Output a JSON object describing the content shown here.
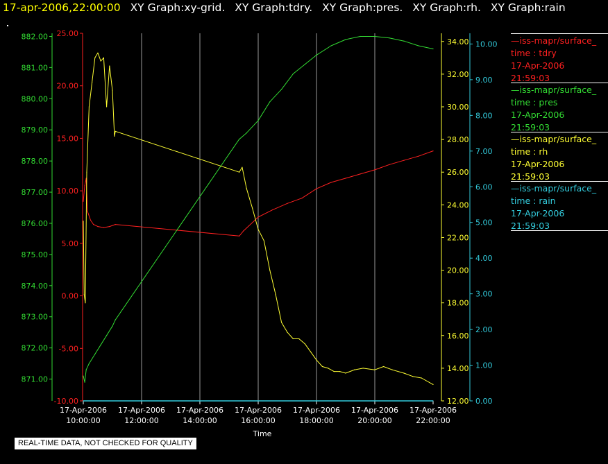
{
  "header": {
    "timestamp": "17-apr-2006,22:00:00",
    "graphs": [
      "XY Graph:xy-grid.",
      "XY Graph:tdry.",
      "XY Graph:pres.",
      "XY Graph:rh.",
      "XY Graph:rain"
    ]
  },
  "footer": {
    "quality_note": "REAL-TIME DATA, NOT CHECKED FOR QUALITY"
  },
  "legend": [
    {
      "name": "iss-mapr/surface_",
      "field": "time : tdry",
      "date": "17-Apr-2006",
      "time": "21:59:03",
      "color": "#ff2020"
    },
    {
      "name": "iss-mapr/surface_",
      "field": "time : pres",
      "date": "17-Apr-2006",
      "time": "21:59:03",
      "color": "#33dd33"
    },
    {
      "name": "iss-mapr/surface_",
      "field": "time : rh",
      "date": "17-Apr-2006",
      "time": "21:59:03",
      "color": "#ffff33"
    },
    {
      "name": "iss-mapr/surface_",
      "field": "time : rain",
      "date": "17-Apr-2006",
      "time": "21:59:03",
      "color": "#33ccdd"
    }
  ],
  "chart_data": {
    "type": "line",
    "xlabel": "Time",
    "x_ticks": [
      "17-Apr-2006 10:00:00",
      "17-Apr-2006 12:00:00",
      "17-Apr-2006 14:00:00",
      "17-Apr-2006 16:00:00",
      "17-Apr-2006 18:00:00",
      "17-Apr-2006 20:00:00",
      "17-Apr-2006 22:00:00"
    ],
    "x_range_hours": [
      10,
      22
    ],
    "grid": "vertical lines at each x tick",
    "axes": {
      "pres": {
        "ylim": [
          870.3,
          882.1
        ],
        "ticks": [
          "871.00",
          "872.00",
          "873.00",
          "874.00",
          "875.00",
          "876.00",
          "877.00",
          "878.00",
          "879.00",
          "880.00",
          "881.00",
          "882.00"
        ],
        "color": "#33dd33"
      },
      "tdry": {
        "ylim": [
          -10,
          25
        ],
        "ticks": [
          "-10.00",
          "-5.00",
          "0.00",
          "5.00",
          "10.00",
          "15.00",
          "20.00",
          "25.00"
        ],
        "color": "#ff2020"
      },
      "rh": {
        "ylim": [
          12,
          34.5
        ],
        "ticks": [
          "12.00",
          "14.00",
          "16.00",
          "18.00",
          "20.00",
          "22.00",
          "24.00",
          "26.00",
          "28.00",
          "30.00",
          "32.00",
          "34.00"
        ],
        "color": "#ffff33"
      },
      "rain": {
        "ylim": [
          0,
          10.3
        ],
        "ticks": [
          "0.00",
          "1.00",
          "2.00",
          "3.00",
          "4.00",
          "5.00",
          "6.00",
          "7.00",
          "8.00",
          "9.00",
          "10.00"
        ],
        "color": "#33ccdd"
      }
    },
    "series": [
      {
        "name": "time : tdry",
        "axis": "tdry",
        "color": "#ff2020",
        "x": [
          10.0,
          10.05,
          10.1,
          10.15,
          10.25,
          10.35,
          10.5,
          10.7,
          10.9,
          11.1,
          15.35,
          15.5,
          16.0,
          16.5,
          17.0,
          17.5,
          18.0,
          18.5,
          19.0,
          19.5,
          20.0,
          20.5,
          21.0,
          21.5,
          22.0
        ],
        "y": [
          9.0,
          10.5,
          11.2,
          8.0,
          7.2,
          6.8,
          6.6,
          6.5,
          6.6,
          6.8,
          5.7,
          6.2,
          7.5,
          8.2,
          8.8,
          9.3,
          10.2,
          10.8,
          11.2,
          11.6,
          12.0,
          12.5,
          12.9,
          13.3,
          13.8
        ]
      },
      {
        "name": "time : pres",
        "axis": "pres",
        "color": "#33dd33",
        "x": [
          10.0,
          10.05,
          10.1,
          10.2,
          10.4,
          10.6,
          10.8,
          11.0,
          11.1,
          15.35,
          15.6,
          16.0,
          16.4,
          16.8,
          17.2,
          17.6,
          18.0,
          18.5,
          19.0,
          19.5,
          20.0,
          20.5,
          21.0,
          21.5,
          22.0
        ],
        "y": [
          871.1,
          870.9,
          871.3,
          871.5,
          871.8,
          872.1,
          872.4,
          872.7,
          872.9,
          878.7,
          878.9,
          879.3,
          879.9,
          880.3,
          880.8,
          881.1,
          881.4,
          881.7,
          881.9,
          882.0,
          882.0,
          881.95,
          881.85,
          881.7,
          881.6
        ]
      },
      {
        "name": "time : rh",
        "axis": "rh",
        "color": "#ffff33",
        "x": [
          10.0,
          10.03,
          10.07,
          10.12,
          10.2,
          10.3,
          10.4,
          10.5,
          10.6,
          10.7,
          10.8,
          10.9,
          11.0,
          11.07,
          11.1,
          15.35,
          15.45,
          15.6,
          15.8,
          16.0,
          16.2,
          16.4,
          16.6,
          16.8,
          17.0,
          17.2,
          17.4,
          17.6,
          17.8,
          18.0,
          18.2,
          18.4,
          18.6,
          18.8,
          19.0,
          19.3,
          19.6,
          20.0,
          20.3,
          20.6,
          21.0,
          21.3,
          21.6,
          22.0
        ],
        "y": [
          23.0,
          18.5,
          18.0,
          26.0,
          30.0,
          31.5,
          33.0,
          33.3,
          32.8,
          33.0,
          30.0,
          32.5,
          31.0,
          28.2,
          28.5,
          26.0,
          26.3,
          25.0,
          23.8,
          22.5,
          21.8,
          20.0,
          18.5,
          16.8,
          16.2,
          15.8,
          15.8,
          15.5,
          15.0,
          14.5,
          14.1,
          14.0,
          13.8,
          13.8,
          13.7,
          13.9,
          14.0,
          13.9,
          14.1,
          13.9,
          13.7,
          13.5,
          13.4,
          13.0
        ]
      },
      {
        "name": "time : rain",
        "axis": "rain",
        "color": "#33ccdd",
        "x": [
          10.0,
          22.0
        ],
        "y": [
          0.0,
          0.0
        ]
      }
    ]
  }
}
